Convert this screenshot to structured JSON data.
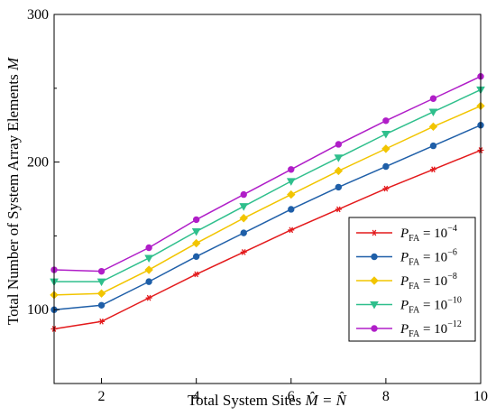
{
  "chart_data": {
    "type": "line",
    "xlabel_prefix": "Total System Sites ",
    "xlabel_math": "M̂ = N̂",
    "ylabel_prefix": "Total Number of System Array Elements ",
    "ylabel_math": "M",
    "xlim": [
      1,
      10
    ],
    "ylim": [
      50,
      300
    ],
    "xticks": [
      "2",
      "4",
      "6",
      "8",
      "10"
    ],
    "yticks": [
      "100",
      "200",
      "300"
    ],
    "grid": false,
    "legend_position": "bottom-right",
    "x": [
      1,
      2,
      3,
      4,
      5,
      6,
      7,
      8,
      9,
      10
    ],
    "series": [
      {
        "name": "P_FA = 10^-4",
        "label_base": "P",
        "label_sub": "FA",
        "label_eq": " = 10",
        "label_exp": "−4",
        "color": "#e31a1c",
        "marker": "star",
        "values": [
          87,
          92,
          108,
          124,
          139,
          154,
          168,
          182,
          195,
          208
        ]
      },
      {
        "name": "P_FA = 10^-6",
        "label_base": "P",
        "label_sub": "FA",
        "label_eq": " = 10",
        "label_exp": "−6",
        "color": "#1f5fa8",
        "marker": "circle",
        "values": [
          100,
          103,
          119,
          136,
          152,
          168,
          183,
          197,
          211,
          225
        ]
      },
      {
        "name": "P_FA = 10^-8",
        "label_base": "P",
        "label_sub": "FA",
        "label_eq": " = 10",
        "label_exp": "−8",
        "color": "#f2c500",
        "marker": "diamond",
        "values": [
          110,
          111,
          127,
          145,
          162,
          178,
          194,
          209,
          224,
          238
        ]
      },
      {
        "name": "P_FA = 10^-10",
        "label_base": "P",
        "label_sub": "FA",
        "label_eq": " = 10",
        "label_exp": "−10",
        "color": "#2fbf8c",
        "marker": "triangle-down",
        "values": [
          119,
          119,
          135,
          153,
          170,
          187,
          203,
          219,
          234,
          249
        ]
      },
      {
        "name": "P_FA = 10^-12",
        "label_base": "P",
        "label_sub": "FA",
        "label_eq": " = 10",
        "label_exp": "−12",
        "color": "#b01ec8",
        "marker": "circle",
        "values": [
          127,
          126,
          142,
          161,
          178,
          195,
          212,
          228,
          243,
          258
        ]
      }
    ]
  }
}
